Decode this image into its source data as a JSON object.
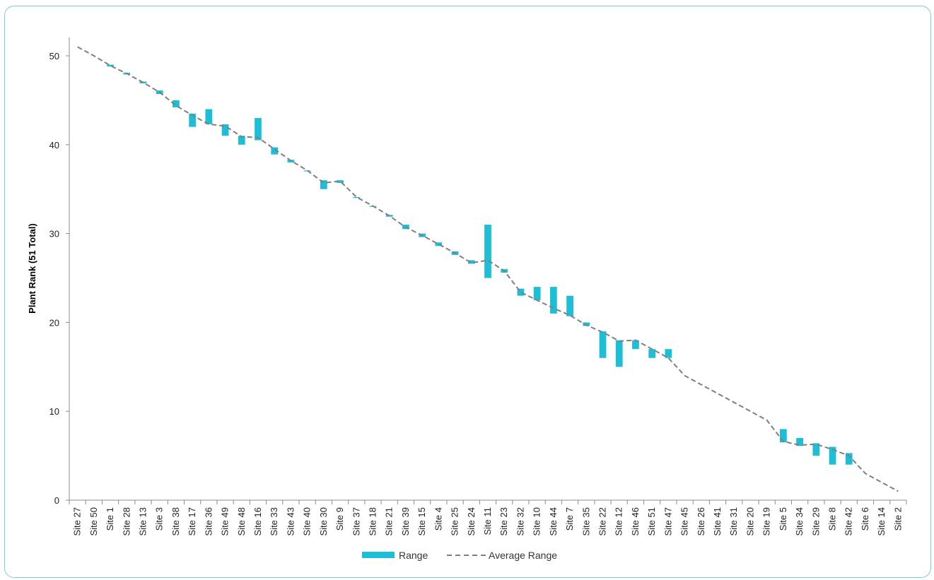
{
  "chart_data": {
    "type": "bar",
    "ylabel": "Plant Rank (51 Total)",
    "xlabel": "",
    "ylim": [
      0,
      52
    ],
    "yticks": [
      0,
      10,
      20,
      30,
      40,
      50
    ],
    "grid": false,
    "legend_position": "bottom",
    "categories": [
      "Site 27",
      "Site 50",
      "Site 1",
      "Site 28",
      "Site 13",
      "Site 3",
      "Site 38",
      "Site 17",
      "Site 36",
      "Site 49",
      "Site 48",
      "Site 16",
      "Site 33",
      "Site 43",
      "Site 40",
      "Site 30",
      "Site 9",
      "Site 37",
      "Site 18",
      "Site 21",
      "Site 39",
      "Site 15",
      "Site 4",
      "Site 25",
      "Site 24",
      "Site 11",
      "Site 23",
      "Site 32",
      "Site 10",
      "Site 44",
      "Site 7",
      "Site 35",
      "Site 22",
      "Site 12",
      "Site 46",
      "Site 51",
      "Site 47",
      "Site 45",
      "Site 26",
      "Site 41",
      "Site 31",
      "Site 20",
      "Site 19",
      "Site 5",
      "Site 34",
      "Site 29",
      "Site 8",
      "Site 42",
      "Site 6",
      "Site 14",
      "Site 2"
    ],
    "series": [
      {
        "name": "Range",
        "kind": "floating-bar",
        "color": "#1ebfd6",
        "low": [
          51,
          50,
          48.8,
          47.9,
          46.9,
          45.7,
          44.2,
          42,
          42.3,
          41,
          40,
          40.5,
          38.9,
          38,
          37,
          35,
          35.7,
          34,
          33,
          31.9,
          30.5,
          29.6,
          28.6,
          27.6,
          26.6,
          25,
          25.6,
          23,
          22.5,
          21,
          20.7,
          19.6,
          16,
          15,
          17,
          16,
          16,
          14,
          13,
          12,
          11,
          10,
          9,
          6.5,
          6.1,
          5,
          4,
          4,
          3,
          2,
          1
        ],
        "high": [
          51,
          50,
          49,
          48.1,
          47.1,
          46.1,
          45,
          43.5,
          44,
          42.3,
          41,
          43,
          39.7,
          38.3,
          37.1,
          36,
          36,
          34.1,
          33.1,
          32.1,
          31,
          30,
          29,
          28,
          27,
          31,
          26,
          23.8,
          24,
          24,
          23,
          20,
          19,
          18,
          18,
          17,
          17,
          14,
          13,
          12,
          11,
          10,
          9,
          8,
          7,
          6.4,
          6,
          5.3,
          3,
          2,
          1
        ]
      },
      {
        "name": "Average Range",
        "kind": "line",
        "style": "dashed",
        "color": "#7f7f7f",
        "values": [
          51,
          50,
          48.9,
          48,
          47,
          45.9,
          44.4,
          43.3,
          42.3,
          42.1,
          40.9,
          40.8,
          39.5,
          38.2,
          37.1,
          35.7,
          35.9,
          34.1,
          33.1,
          32,
          30.7,
          29.8,
          28.8,
          27.8,
          26.7,
          27,
          25.8,
          23.4,
          22.5,
          21.6,
          20.8,
          19.7,
          18.9,
          17.9,
          18,
          17,
          16,
          14,
          13,
          12,
          11,
          10,
          9,
          6.6,
          6.2,
          6.3,
          5.7,
          5,
          3,
          2,
          1
        ]
      }
    ]
  }
}
